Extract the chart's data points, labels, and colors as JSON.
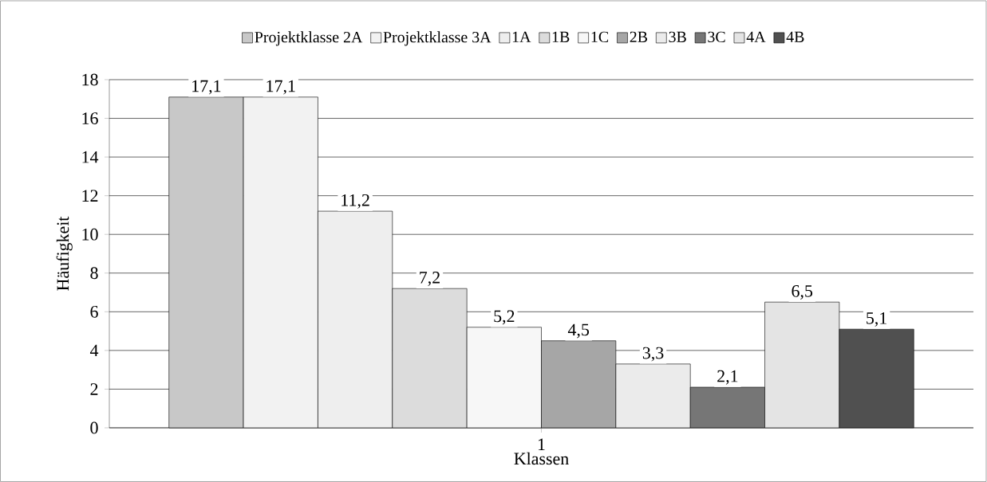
{
  "chart_data": {
    "type": "bar",
    "xlabel": "Klassen",
    "ylabel": "Häufigkeit",
    "categories": [
      "1"
    ],
    "series": [
      {
        "name": "Projektklasse 2A",
        "color": "#c8c8c8",
        "values": [
          17.1
        ],
        "value_labels": [
          "17,1"
        ]
      },
      {
        "name": "Projektklasse 3A",
        "color": "#f2f2f2",
        "values": [
          17.1
        ],
        "value_labels": [
          "17,1"
        ]
      },
      {
        "name": "1A",
        "color": "#eeeeee",
        "values": [
          11.2
        ],
        "value_labels": [
          "11,2"
        ]
      },
      {
        "name": "1B",
        "color": "#dcdcdc",
        "values": [
          7.2
        ],
        "value_labels": [
          "7,2"
        ]
      },
      {
        "name": "1C",
        "color": "#f7f7f7",
        "values": [
          5.2
        ],
        "value_labels": [
          "5,2"
        ]
      },
      {
        "name": "2B",
        "color": "#a6a6a6",
        "values": [
          4.5
        ],
        "value_labels": [
          "4,5"
        ]
      },
      {
        "name": "3B",
        "color": "#ebebeb",
        "values": [
          3.3
        ],
        "value_labels": [
          "3,3"
        ]
      },
      {
        "name": "3C",
        "color": "#767676",
        "values": [
          2.1
        ],
        "value_labels": [
          "2,1"
        ]
      },
      {
        "name": "4A",
        "color": "#e4e4e4",
        "values": [
          6.5
        ],
        "value_labels": [
          "6,5"
        ]
      },
      {
        "name": "4B",
        "color": "#505050",
        "values": [
          5.1
        ],
        "value_labels": [
          "5,1"
        ]
      }
    ],
    "ylim": [
      0,
      18
    ],
    "yticks": [
      0,
      2,
      4,
      6,
      8,
      10,
      12,
      14,
      16,
      18
    ],
    "grid": "y",
    "legend": "top"
  }
}
